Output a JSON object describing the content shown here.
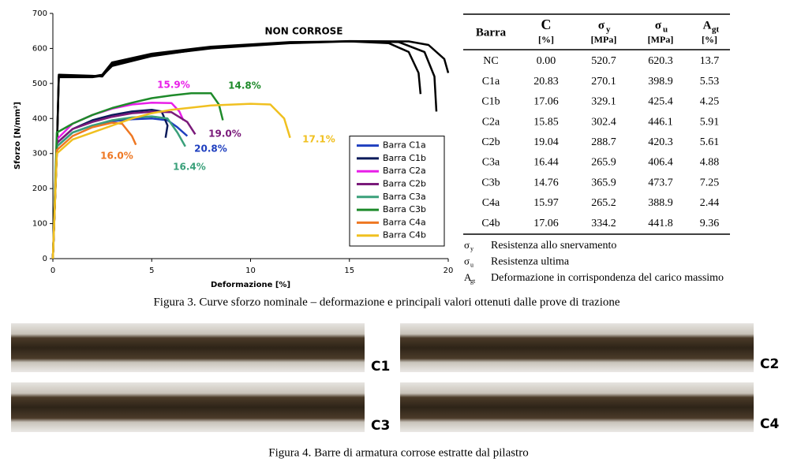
{
  "chart_data": {
    "type": "line",
    "x_label": "Deformazione [%]",
    "y_label": "Sforzo [N/mm²]",
    "xlim": [
      0,
      20
    ],
    "xticks": [
      0,
      5,
      10,
      15,
      20
    ],
    "ylim": [
      0,
      700
    ],
    "yticks": [
      0,
      100,
      200,
      300,
      400,
      500,
      600,
      700
    ],
    "legend": "lower right",
    "annotations": [
      {
        "text": "NON CORROSE",
        "color": "#000000"
      },
      {
        "text": "15.9%",
        "color": "#e81ee8"
      },
      {
        "text": "14.8%",
        "color": "#1e8a2a"
      },
      {
        "text": "19.0%",
        "color": "#7a1a7a"
      },
      {
        "text": "20.8%",
        "color": "#1f3fbf"
      },
      {
        "text": "16.0%",
        "color": "#ee7722"
      },
      {
        "text": "16.4%",
        "color": "#3aa07a"
      },
      {
        "text": "17.1%",
        "color": "#f0c020"
      }
    ],
    "series": [
      {
        "color": "#000000",
        "x": [
          0,
          0.2,
          0.3,
          2,
          2.5,
          3,
          5,
          8,
          12,
          15,
          17,
          18,
          18.5,
          18.6
        ],
        "values": [
          0,
          300,
          520,
          520,
          525,
          560,
          585,
          605,
          618,
          620,
          615,
          590,
          530,
          470
        ]
      },
      {
        "color": "#000000",
        "x": [
          0,
          0.2,
          0.3,
          2,
          2.5,
          3,
          5,
          8,
          12,
          15,
          17.5,
          18.8,
          19.3,
          19.4
        ],
        "values": [
          0,
          310,
          525,
          522,
          520,
          555,
          580,
          600,
          615,
          620,
          618,
          590,
          520,
          420
        ]
      },
      {
        "color": "#000000",
        "x": [
          0,
          0.2,
          0.3,
          2,
          2.5,
          3,
          5,
          8,
          12,
          15,
          18,
          19,
          19.8,
          20
        ],
        "values": [
          0,
          305,
          518,
          518,
          522,
          550,
          578,
          602,
          616,
          621,
          620,
          610,
          570,
          530
        ]
      },
      {
        "name": "Barra C1a",
        "color": "#1f3fbf",
        "x": [
          0,
          0.2,
          1,
          2,
          3,
          4,
          5,
          5.8,
          6.3,
          6.8
        ],
        "values": [
          0,
          320,
          360,
          380,
          392,
          398,
          400,
          395,
          375,
          350
        ]
      },
      {
        "name": "Barra C1b",
        "color": "#0a1a5a",
        "x": [
          0,
          0.2,
          1,
          2,
          3,
          4,
          5,
          5.5,
          5.8,
          5.7
        ],
        "values": [
          0,
          330,
          370,
          395,
          410,
          420,
          425,
          420,
          380,
          345
        ]
      },
      {
        "name": "Barra C2a",
        "color": "#e81ee8",
        "x": [
          0,
          0.2,
          1,
          2,
          3,
          4,
          5,
          6,
          6.4,
          6.6
        ],
        "values": [
          0,
          340,
          385,
          410,
          428,
          440,
          445,
          444,
          420,
          395
        ]
      },
      {
        "name": "Barra C2b",
        "color": "#7a1a7a",
        "x": [
          0,
          0.2,
          1,
          2,
          3,
          4,
          5,
          6,
          6.8,
          7.2
        ],
        "values": [
          0,
          330,
          370,
          390,
          405,
          415,
          419,
          418,
          390,
          355
        ]
      },
      {
        "name": "Barra C3a",
        "color": "#3aa07a",
        "x": [
          0,
          0.2,
          1,
          2,
          3,
          4,
          5,
          5.8,
          6.3,
          6.7
        ],
        "values": [
          0,
          320,
          360,
          380,
          395,
          403,
          406,
          400,
          360,
          320
        ]
      },
      {
        "name": "Barra C3b",
        "color": "#1e8a2a",
        "x": [
          0,
          0.2,
          1,
          2,
          3,
          4,
          5,
          6,
          7,
          8,
          8.4,
          8.6
        ],
        "values": [
          0,
          360,
          385,
          410,
          430,
          445,
          458,
          466,
          472,
          472,
          440,
          395
        ]
      },
      {
        "name": "Barra C4a",
        "color": "#ee7722",
        "x": [
          0,
          0.2,
          1,
          2,
          3,
          3.5,
          4,
          4.2
        ],
        "values": [
          0,
          310,
          350,
          375,
          388,
          385,
          350,
          325
        ]
      },
      {
        "name": "Barra C4b",
        "color": "#f0c020",
        "x": [
          0,
          0.2,
          1,
          2,
          3,
          4,
          5,
          6,
          8,
          10,
          11,
          11.7,
          12
        ],
        "values": [
          0,
          300,
          340,
          360,
          380,
          400,
          415,
          425,
          437,
          442,
          440,
          400,
          345
        ]
      }
    ]
  },
  "table": {
    "header": [
      {
        "label": "Barra"
      },
      {
        "label": "C",
        "unit": "[%]"
      },
      {
        "label": "σ",
        "sub": "y",
        "unit": "[MPa]"
      },
      {
        "label": "σ",
        "sub": "u",
        "unit": "[MPa]"
      },
      {
        "label": "A",
        "sub": "gt",
        "unit": "[%]"
      }
    ],
    "rows": [
      [
        "NC",
        "0.00",
        "520.7",
        "620.3",
        "13.7"
      ],
      [
        "C1a",
        "20.83",
        "270.1",
        "398.9",
        "5.53"
      ],
      [
        "C1b",
        "17.06",
        "329.1",
        "425.4",
        "4.25"
      ],
      [
        "C2a",
        "15.85",
        "302.4",
        "446.1",
        "5.91"
      ],
      [
        "C2b",
        "19.04",
        "288.7",
        "420.3",
        "5.61"
      ],
      [
        "C3a",
        "16.44",
        "265.9",
        "406.4",
        "4.88"
      ],
      [
        "C3b",
        "14.76",
        "365.9",
        "473.7",
        "7.25"
      ],
      [
        "C4a",
        "15.97",
        "265.2",
        "388.9",
        "2.44"
      ],
      [
        "C4b",
        "17.06",
        "334.2",
        "441.8",
        "9.36"
      ]
    ]
  },
  "notes": [
    {
      "symbol": "σ",
      "sub": "y",
      "text": "Resistenza allo snervamento"
    },
    {
      "symbol": "σ",
      "sub": "u",
      "text": "Resistenza ultima"
    },
    {
      "symbol": "A",
      "sub": "gt",
      "text": "Deformazione in corrispondenza del carico massimo"
    }
  ],
  "figure3_caption": "Figura 3. Curve sforzo nominale – deformazione e principali valori ottenuti dalle prove di trazione",
  "photos": [
    "C1",
    "C2",
    "C3",
    "C4"
  ],
  "figure4_caption": "Figura 4. Barre di armatura corrose estratte dal pilastro"
}
